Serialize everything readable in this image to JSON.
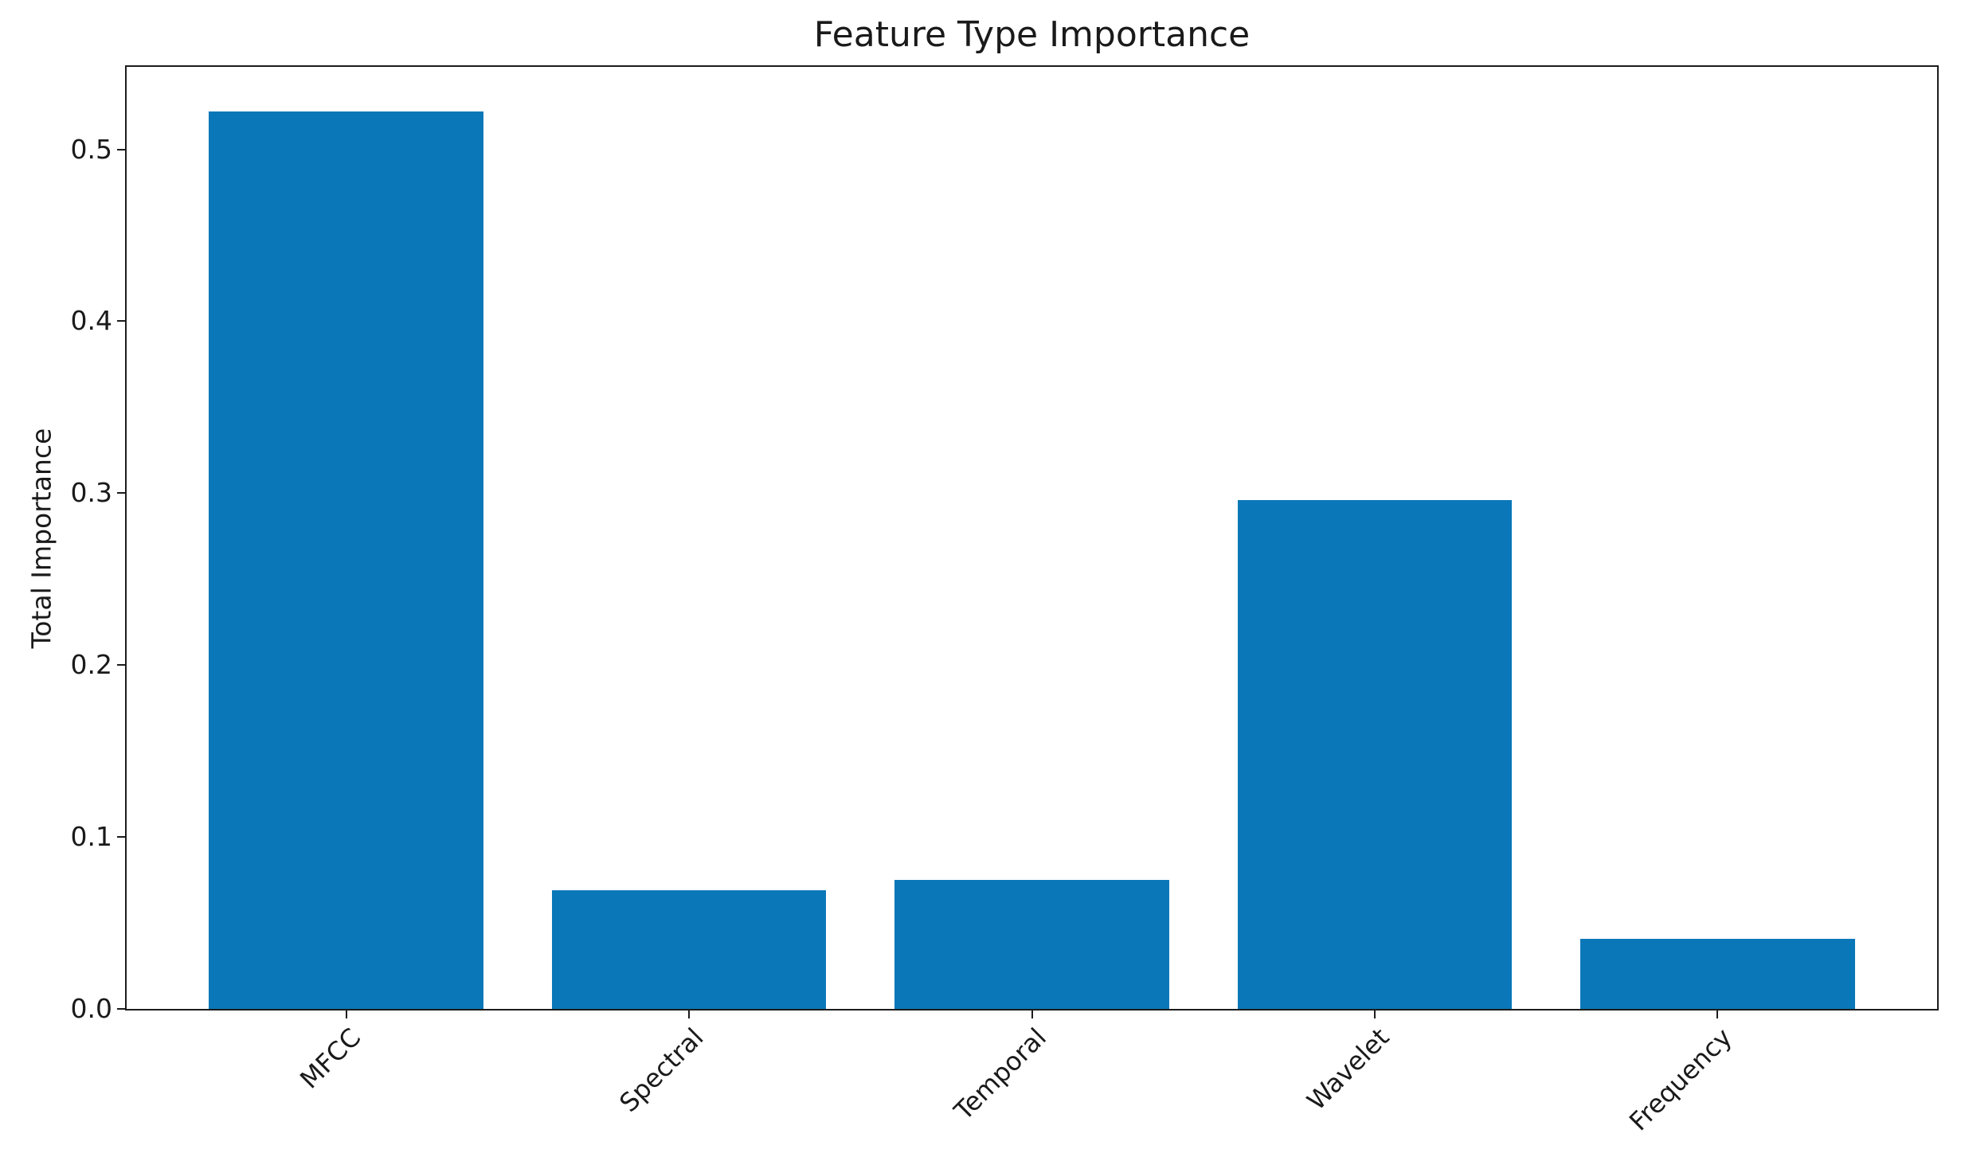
{
  "chart_data": {
    "type": "bar",
    "title": "Feature Type Importance",
    "xlabel": "",
    "ylabel": "Total Importance",
    "categories": [
      "MFCC",
      "Spectral",
      "Temporal",
      "Wavelet",
      "Frequency"
    ],
    "values": [
      0.522,
      0.069,
      0.075,
      0.296,
      0.041
    ],
    "ytick_values": [
      0.0,
      0.1,
      0.2,
      0.3,
      0.4,
      0.5
    ],
    "ytick_labels": [
      "0.0",
      "0.1",
      "0.2",
      "0.3",
      "0.4",
      "0.5"
    ],
    "ylim": [
      0,
      0.548
    ],
    "xtick_rotation_deg": 45,
    "grid": false,
    "legend": null,
    "bar_color": "#0a78b8",
    "spine_color": "#1c1c1c",
    "text_color": "#1a1a1a",
    "background_color": "#ffffff"
  }
}
